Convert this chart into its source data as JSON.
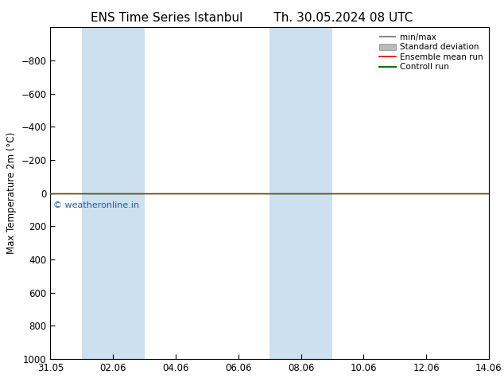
{
  "title_left": "ENS Time Series Istanbul",
  "title_right": "Th. 30.05.2024 08 UTC",
  "ylabel": "Max Temperature 2m (°C)",
  "ylim_top": -1000,
  "ylim_bottom": 1000,
  "yticks": [
    -800,
    -600,
    -400,
    -200,
    0,
    200,
    400,
    600,
    800,
    1000
  ],
  "xtick_labels": [
    "31.05",
    "02.06",
    "04.06",
    "06.06",
    "08.06",
    "10.06",
    "12.06",
    "14.06"
  ],
  "xtick_positions": [
    0,
    2,
    4,
    6,
    8,
    10,
    12,
    14
  ],
  "shaded_bands": [
    {
      "x_start": 1.0,
      "x_end": 2.0
    },
    {
      "x_start": 2.0,
      "x_end": 3.0
    },
    {
      "x_start": 7.0,
      "x_end": 8.0
    },
    {
      "x_start": 8.0,
      "x_end": 9.0
    }
  ],
  "shaded_color": "#cce0f0",
  "horizontal_line_y": 0,
  "line_red_color": "#dd0000",
  "line_green_color": "#007700",
  "line_black_color": "#888888",
  "line_gray_color": "#bbbbbb",
  "watermark_text": "© weatheronline.in",
  "watermark_color": "#1a5faa",
  "legend_labels": [
    "min/max",
    "Standard deviation",
    "Ensemble mean run",
    "Controll run"
  ],
  "background_color": "#ffffff",
  "plot_background": "#ffffff",
  "title_fontsize": 11,
  "axis_fontsize": 8.5,
  "tick_fontsize": 8.5,
  "x_min": 0,
  "x_max": 14
}
